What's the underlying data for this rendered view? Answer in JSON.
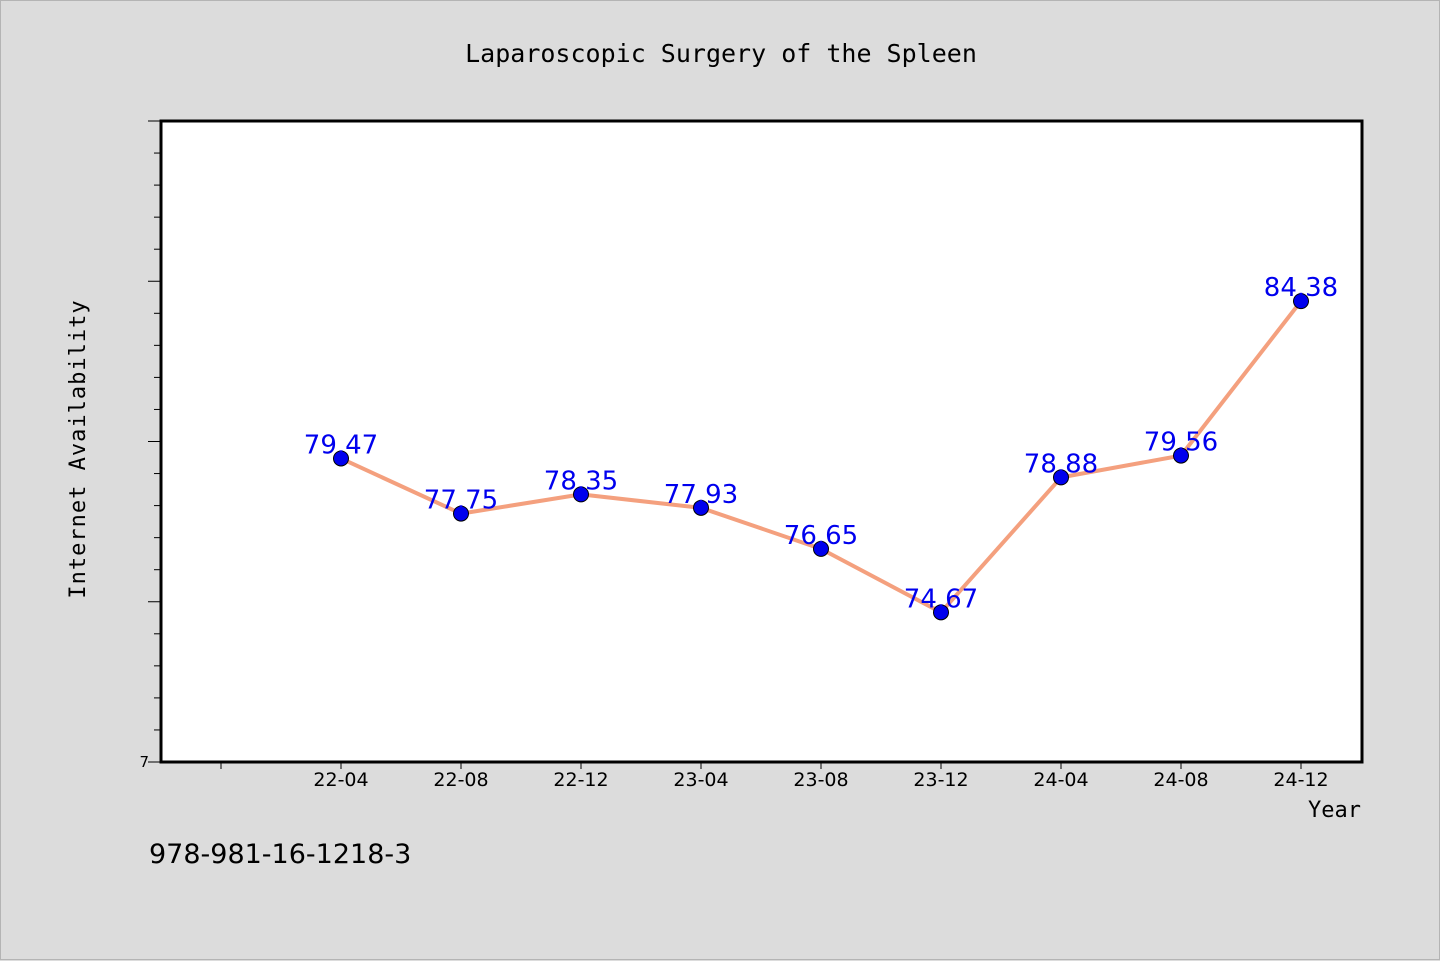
{
  "chart_data": {
    "type": "line",
    "title": "Laparoscopic Surgery of the Spleen",
    "xlabel": "Year",
    "ylabel": "Internet Availability",
    "categories": [
      "22-04",
      "22-08",
      "22-12",
      "23-04",
      "23-08",
      "23-12",
      "24-04",
      "24-08",
      "24-12"
    ],
    "series": [
      {
        "values": [
          79.47,
          77.75,
          78.35,
          77.93,
          76.65,
          74.67,
          78.88,
          79.56,
          84.38
        ],
        "labels": [
          "79.47",
          "77.75",
          "78.35",
          "77.93",
          "76.65",
          "74.67",
          "78.88",
          "79.56",
          "84.38"
        ]
      }
    ],
    "y_tick_label": "7",
    "ylim": [
      70,
      90
    ],
    "grid": false,
    "colors": {
      "line": "#f4a07e",
      "marker": "#0000ee",
      "label": "#0000ee",
      "background": "#dcdcdc",
      "plot_bg": "#ffffff"
    }
  },
  "footer_text": "978-981-16-1218-3"
}
